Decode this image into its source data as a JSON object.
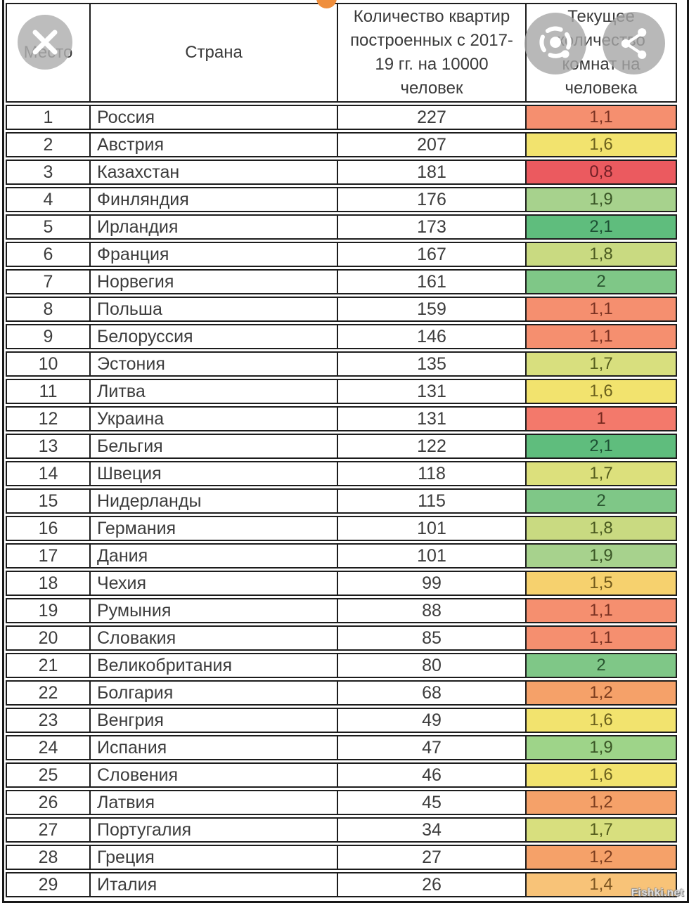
{
  "overlay": {
    "close_icon": "x-close",
    "lens_icon": "google-lens",
    "share_icon": "share",
    "circle_gray": "#A6A6A6",
    "orange_dot_color": "#EF8E3C",
    "watermark": "Fishki.net"
  },
  "table": {
    "headers": {
      "rank": "Место",
      "country": "Страна",
      "apartments_lines": [
        "Количество квартир",
        "построенных с 2017-",
        "19 гг. на 10000",
        "человек"
      ],
      "rooms_lines": [
        "Текущее",
        "количество",
        "комнат на",
        "человека"
      ]
    },
    "rows": [
      {
        "rank": "1",
        "country": "Россия",
        "apartments": "227",
        "rooms": "1,1",
        "color": "#F58F6F",
        "tcolor": "#7B3222"
      },
      {
        "rank": "2",
        "country": "Австрия",
        "apartments": "207",
        "rooms": "1,6",
        "color": "#F2E36E",
        "tcolor": "#6B611D"
      },
      {
        "rank": "3",
        "country": "Казахстан",
        "apartments": "181",
        "rooms": "0,8",
        "color": "#EB5A5F",
        "tcolor": "#701F26"
      },
      {
        "rank": "4",
        "country": "Финляндия",
        "apartments": "176",
        "rooms": "1,9",
        "color": "#A7D28D",
        "tcolor": "#3A5626"
      },
      {
        "rank": "5",
        "country": "Ирландия",
        "apartments": "173",
        "rooms": "2,1",
        "color": "#5FBD7D",
        "tcolor": "#1D5134"
      },
      {
        "rank": "6",
        "country": "Франция",
        "apartments": "167",
        "rooms": "1,8",
        "color": "#C9DA81",
        "tcolor": "#4B5A20"
      },
      {
        "rank": "7",
        "country": "Норвегия",
        "apartments": "161",
        "rooms": "2",
        "color": "#7FC787",
        "tcolor": "#2A5530"
      },
      {
        "rank": "8",
        "country": "Польша",
        "apartments": "159",
        "rooms": "1,1",
        "color": "#F58F6F",
        "tcolor": "#7B3222"
      },
      {
        "rank": "9",
        "country": "Белоруссия",
        "apartments": "146",
        "rooms": "1,1",
        "color": "#F58F6F",
        "tcolor": "#7B3222"
      },
      {
        "rank": "10",
        "country": "Эстония",
        "apartments": "135",
        "rooms": "1,7",
        "color": "#D8DF7E",
        "tcolor": "#565E1E"
      },
      {
        "rank": "11",
        "country": "Литва",
        "apartments": "131",
        "rooms": "1,6",
        "color": "#F2E36E",
        "tcolor": "#6B611D"
      },
      {
        "rank": "12",
        "country": "Украина",
        "apartments": "131",
        "rooms": "1",
        "color": "#F3796B",
        "tcolor": "#77281E"
      },
      {
        "rank": "13",
        "country": "Бельгия",
        "apartments": "122",
        "rooms": "2,1",
        "color": "#5FBD7D",
        "tcolor": "#1D5134"
      },
      {
        "rank": "14",
        "country": "Швеция",
        "apartments": "118",
        "rooms": "1,7",
        "color": "#DCE07C",
        "tcolor": "#565E1E"
      },
      {
        "rank": "15",
        "country": "Нидерланды",
        "apartments": "115",
        "rooms": "2",
        "color": "#7FC787",
        "tcolor": "#2A5530"
      },
      {
        "rank": "16",
        "country": "Германия",
        "apartments": "101",
        "rooms": "1,8",
        "color": "#C9DA81",
        "tcolor": "#4B5A20"
      },
      {
        "rank": "17",
        "country": "Дания",
        "apartments": "101",
        "rooms": "1,9",
        "color": "#A7D28D",
        "tcolor": "#3A5626"
      },
      {
        "rank": "18",
        "country": "Чехия",
        "apartments": "99",
        "rooms": "1,5",
        "color": "#F6D16E",
        "tcolor": "#72591B"
      },
      {
        "rank": "19",
        "country": "Румыния",
        "apartments": "88",
        "rooms": "1,1",
        "color": "#F58F6F",
        "tcolor": "#7B3222"
      },
      {
        "rank": "20",
        "country": "Словакия",
        "apartments": "85",
        "rooms": "1,1",
        "color": "#F58F6F",
        "tcolor": "#7B3222"
      },
      {
        "rank": "21",
        "country": "Великобритания",
        "apartments": "80",
        "rooms": "2",
        "color": "#7FC787",
        "tcolor": "#2A5530"
      },
      {
        "rank": "22",
        "country": "Болгария",
        "apartments": "68",
        "rooms": "1,2",
        "color": "#F5A169",
        "tcolor": "#7C3D1E"
      },
      {
        "rank": "23",
        "country": "Венгрия",
        "apartments": "49",
        "rooms": "1,6",
        "color": "#F2E36E",
        "tcolor": "#6B611D"
      },
      {
        "rank": "24",
        "country": "Испания",
        "apartments": "47",
        "rooms": "1,9",
        "color": "#9ED489",
        "tcolor": "#3A5626"
      },
      {
        "rank": "25",
        "country": "Словения",
        "apartments": "46",
        "rooms": "1,6",
        "color": "#F2E36E",
        "tcolor": "#6B611D"
      },
      {
        "rank": "26",
        "country": "Латвия",
        "apartments": "45",
        "rooms": "1,2",
        "color": "#F5A169",
        "tcolor": "#7C3D1E"
      },
      {
        "rank": "27",
        "country": "Португалия",
        "apartments": "34",
        "rooms": "1,7",
        "color": "#D8DF7E",
        "tcolor": "#565E1E"
      },
      {
        "rank": "28",
        "country": "Греция",
        "apartments": "27",
        "rooms": "1,2",
        "color": "#F5A169",
        "tcolor": "#7C3D1E"
      },
      {
        "rank": "29",
        "country": "Италия",
        "apartments": "26",
        "rooms": "1,4",
        "color": "#F8C378",
        "tcolor": "#7D5622"
      }
    ]
  },
  "chart_data": {
    "type": "table",
    "title": "Количество квартир построенных с 2017-19 гг. на 10000 человек / Текущее количество комнат на человека",
    "columns": [
      "Место",
      "Страна",
      "Количество квартир построенных с 2017-19 гг. на 10000 человек",
      "Текущее количество комнат на человека"
    ],
    "rows": [
      [
        1,
        "Россия",
        227,
        1.1
      ],
      [
        2,
        "Австрия",
        207,
        1.6
      ],
      [
        3,
        "Казахстан",
        181,
        0.8
      ],
      [
        4,
        "Финляндия",
        176,
        1.9
      ],
      [
        5,
        "Ирландия",
        173,
        2.1
      ],
      [
        6,
        "Франция",
        167,
        1.8
      ],
      [
        7,
        "Норвегия",
        161,
        2
      ],
      [
        8,
        "Польша",
        159,
        1.1
      ],
      [
        9,
        "Белоруссия",
        146,
        1.1
      ],
      [
        10,
        "Эстония",
        135,
        1.7
      ],
      [
        11,
        "Литва",
        131,
        1.6
      ],
      [
        12,
        "Украина",
        131,
        1
      ],
      [
        13,
        "Бельгия",
        122,
        2.1
      ],
      [
        14,
        "Швеция",
        118,
        1.7
      ],
      [
        15,
        "Нидерланды",
        115,
        2
      ],
      [
        16,
        "Германия",
        101,
        1.8
      ],
      [
        17,
        "Дания",
        101,
        1.9
      ],
      [
        18,
        "Чехия",
        99,
        1.5
      ],
      [
        19,
        "Румыния",
        88,
        1.1
      ],
      [
        20,
        "Словакия",
        85,
        1.1
      ],
      [
        21,
        "Великобритания",
        80,
        2
      ],
      [
        22,
        "Болгария",
        68,
        1.2
      ],
      [
        23,
        "Венгрия",
        49,
        1.6
      ],
      [
        24,
        "Испания",
        47,
        1.9
      ],
      [
        25,
        "Словения",
        46,
        1.6
      ],
      [
        26,
        "Латвия",
        45,
        1.2
      ],
      [
        27,
        "Португалия",
        34,
        1.7
      ],
      [
        28,
        "Греция",
        27,
        1.2
      ],
      [
        29,
        "Италия",
        26,
        1.4
      ]
    ],
    "color_scale": {
      "min_red": "#EB5A5F",
      "mid_yellow": "#F2E36E",
      "max_green": "#5FBD7D",
      "applies_to": "Текущее количество комнат на человека"
    }
  }
}
